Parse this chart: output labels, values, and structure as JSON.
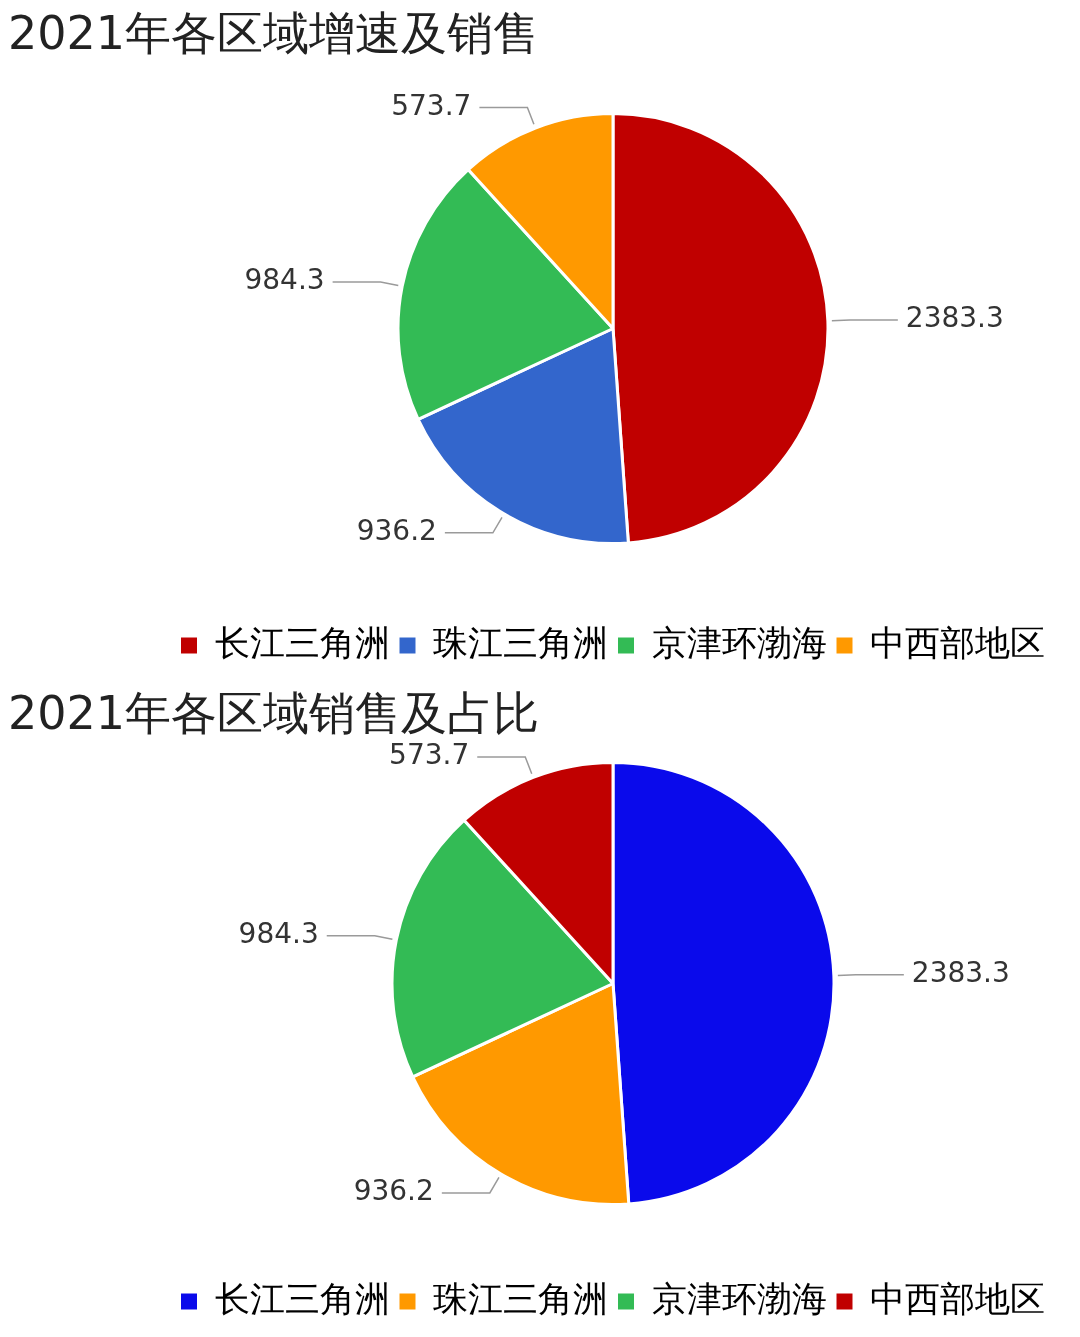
{
  "chart_data": [
    {
      "type": "pie",
      "title": "2021年各区域增速及销售",
      "categories": [
        "长江三角洲",
        "珠江三角洲",
        "京津环渤海",
        "中西部地区"
      ],
      "values": [
        2383.3,
        936.2,
        984.3,
        573.7
      ],
      "colors": [
        "#c00000",
        "#3366cc",
        "#33bb55",
        "#ff9900"
      ],
      "data_labels": true,
      "legend": "bottom"
    },
    {
      "type": "pie",
      "title": "2021年各区域销售及占比",
      "categories": [
        "长江三角洲",
        "珠江三角洲",
        "京津环渤海",
        "中西部地区"
      ],
      "values": [
        2383.3,
        936.2,
        984.3,
        573.7
      ],
      "colors": [
        "#0a0aeb",
        "#ff9900",
        "#33bb55",
        "#c00000"
      ],
      "data_labels": true,
      "legend": "bottom"
    }
  ]
}
